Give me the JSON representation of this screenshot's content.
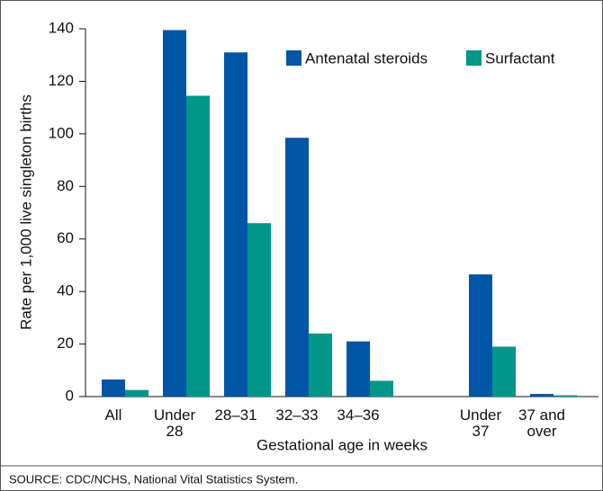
{
  "chart_data": {
    "type": "bar",
    "ylabel": "Rate per 1,000 live singleton births",
    "xlabel": "Gestational age in weeks",
    "source": "SOURCE: CDC/NCHS, National Vital Statistics System.",
    "categories": [
      "All",
      "Under 28",
      "28–31",
      "32–33",
      "34–36",
      null,
      "Under 37",
      "37 and over"
    ],
    "series": [
      {
        "name": "Antenatal steroids",
        "color": "#0055a5",
        "values": [
          6.5,
          139.5,
          131,
          98.5,
          21,
          null,
          46.5,
          1
        ]
      },
      {
        "name": "Surfactant",
        "color": "#00968a",
        "values": [
          2.5,
          114.5,
          66,
          24,
          6,
          null,
          19,
          0.5
        ]
      }
    ],
    "ylim": [
      0,
      140
    ],
    "yticks": [
      0,
      20,
      40,
      60,
      80,
      100,
      120,
      140
    ],
    "legend": "top-right"
  }
}
